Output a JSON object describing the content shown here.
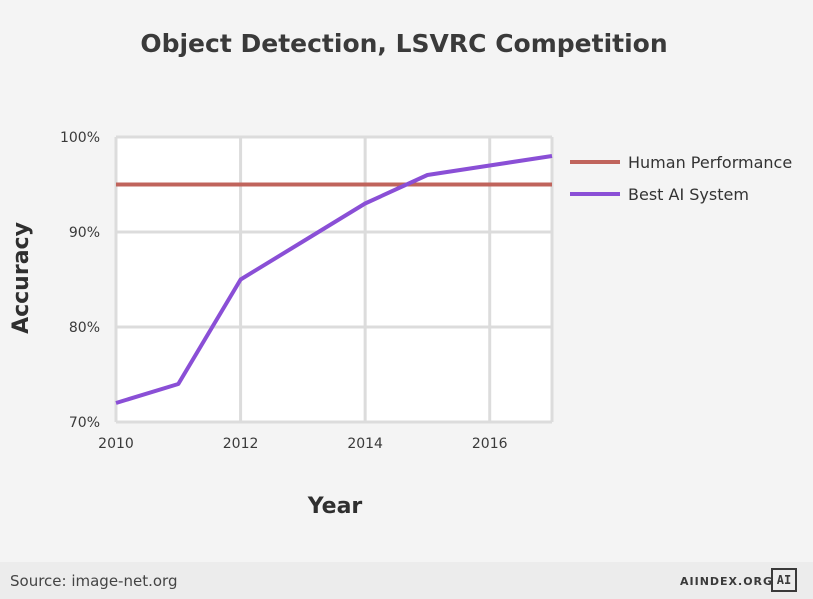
{
  "chart_data": {
    "type": "line",
    "title": "Object Detection, LSVRC Competition",
    "xlabel": "Year",
    "ylabel": "Accuracy",
    "xlim": [
      2010,
      2017
    ],
    "ylim": [
      70,
      100
    ],
    "x_ticks": [
      "2010",
      "2012",
      "2014",
      "2016"
    ],
    "y_ticks": [
      "70%",
      "80%",
      "90%",
      "100%"
    ],
    "grid": true,
    "legend": "right",
    "series": [
      {
        "name": "Human Performance",
        "color": "#c0645c",
        "x": [
          2010,
          2017
        ],
        "y": [
          95,
          95
        ]
      },
      {
        "name": "Best AI System",
        "color": "#8a4fd6",
        "x": [
          2010,
          2011,
          2012,
          2013,
          2014,
          2015,
          2016,
          2017
        ],
        "y": [
          72,
          74,
          85,
          89,
          93,
          96,
          97,
          98
        ]
      }
    ]
  },
  "footer": {
    "source": "Source: image-net.org",
    "brand": "AIINDEX.ORG",
    "logo_text": "AI"
  }
}
